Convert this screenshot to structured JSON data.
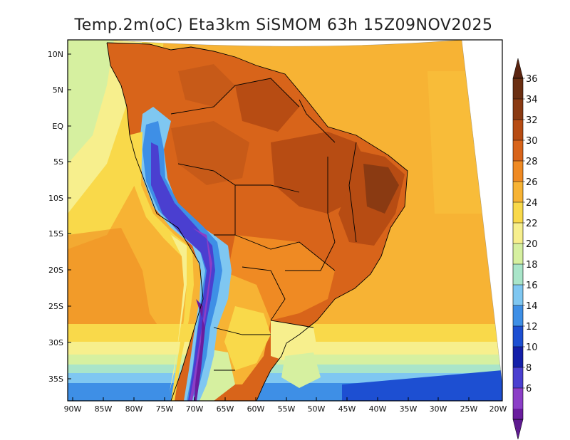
{
  "map": {
    "title": "Temp.2m(oC) Eta3km SiSMOM 63h 15Z09NOV2025",
    "lat_labels": [
      "10N",
      "5N",
      "EQ",
      "5S",
      "10S",
      "15S",
      "20S",
      "25S",
      "30S",
      "35S"
    ],
    "lon_labels": [
      "90W",
      "85W",
      "80W",
      "75W",
      "70W",
      "65W",
      "60W",
      "55W",
      "50W",
      "45W",
      "40W",
      "35W",
      "30W",
      "25W",
      "20W"
    ]
  },
  "colorbar": {
    "ticks": [
      "36",
      "34",
      "32",
      "30",
      "28",
      "26",
      "24",
      "22",
      "20",
      "18",
      "16",
      "14",
      "12",
      "10",
      "8",
      "6"
    ],
    "colors": [
      "#6b2f12",
      "#8a3a12",
      "#b74c13",
      "#d8641a",
      "#ef8a23",
      "#f7b334",
      "#f9d94a",
      "#f7ef8d",
      "#d6f0a0",
      "#a9e5c9",
      "#7fc7f1",
      "#3e8fe6",
      "#1d4fd2",
      "#141fa9",
      "#4a3fd0",
      "#8b3ec7",
      "#6a1d9e"
    ],
    "top_cap_color": "#5a2410",
    "bottom_cap_color": "#5e1a8f"
  }
}
